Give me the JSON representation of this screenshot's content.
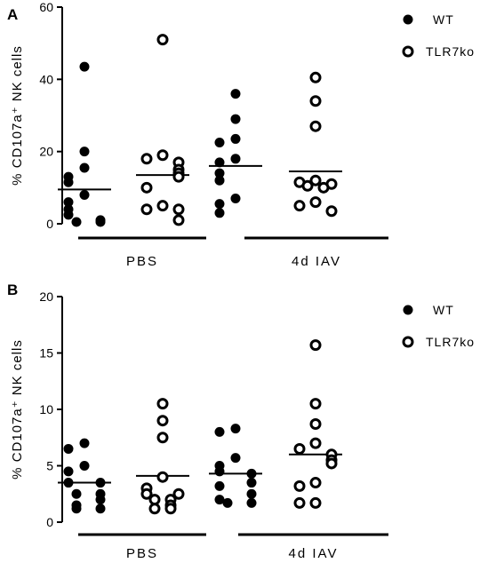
{
  "chart_data": [
    {
      "type": "scatter",
      "panel_label": "A",
      "ylabel": "% CD107a⁺ NK cells",
      "ylim": [
        0,
        60
      ],
      "yticks": [
        0,
        20,
        40,
        60
      ],
      "groups": [
        "PBS",
        "4d IAV"
      ],
      "legend": [
        "WT",
        "TLR7ko"
      ],
      "series": [
        {
          "name": "WT",
          "group": "PBS",
          "marker": "filled",
          "values": [
            43.5,
            20,
            15.5,
            13,
            11.5,
            8,
            6,
            4,
            2.5,
            1,
            0.5,
            0.5
          ],
          "mean": 9.5
        },
        {
          "name": "TLR7ko",
          "group": "PBS",
          "marker": "open",
          "values": [
            51,
            19,
            18,
            17,
            15,
            14,
            13,
            10,
            5,
            4,
            4,
            1
          ],
          "mean": 13.5
        },
        {
          "name": "WT",
          "group": "4d IAV",
          "marker": "filled",
          "values": [
            36,
            29,
            23.5,
            22.5,
            18,
            17,
            14,
            12,
            7,
            5.5,
            3
          ],
          "mean": 16
        },
        {
          "name": "TLR7ko",
          "group": "4d IAV",
          "marker": "open",
          "values": [
            40.5,
            34,
            27,
            12,
            11.5,
            11,
            10.5,
            10,
            6,
            5,
            3.5
          ],
          "mean": 14.5
        }
      ]
    },
    {
      "type": "scatter",
      "panel_label": "B",
      "ylabel": "% CD107a⁺ NK cells",
      "ylim": [
        0,
        20
      ],
      "yticks": [
        0,
        5,
        10,
        15,
        20
      ],
      "groups": [
        "PBS",
        "4d IAV"
      ],
      "legend": [
        "WT",
        "TLR7ko"
      ],
      "series": [
        {
          "name": "WT",
          "group": "PBS",
          "marker": "filled",
          "values": [
            7,
            6.5,
            5,
            4.5,
            3.5,
            3.5,
            2.5,
            2.5,
            2,
            1.5,
            1.2,
            1.2
          ],
          "mean": 3.5
        },
        {
          "name": "TLR7ko",
          "group": "PBS",
          "marker": "open",
          "values": [
            10.5,
            9,
            7.5,
            4,
            3,
            2.5,
            2.5,
            2,
            2,
            1.5,
            1.2,
            1.2
          ],
          "mean": 4.1
        },
        {
          "name": "WT",
          "group": "4d IAV",
          "marker": "filled",
          "values": [
            8.3,
            8,
            5.7,
            5,
            4.5,
            4.3,
            3.5,
            3.2,
            2.5,
            2,
            1.7,
            1.7
          ],
          "mean": 4.3
        },
        {
          "name": "TLR7ko",
          "group": "4d IAV",
          "marker": "open",
          "values": [
            15.7,
            10.5,
            8.7,
            7,
            6.5,
            6,
            5.5,
            5.2,
            3.5,
            3.2,
            1.7,
            1.7
          ],
          "mean": 6
        }
      ]
    }
  ]
}
